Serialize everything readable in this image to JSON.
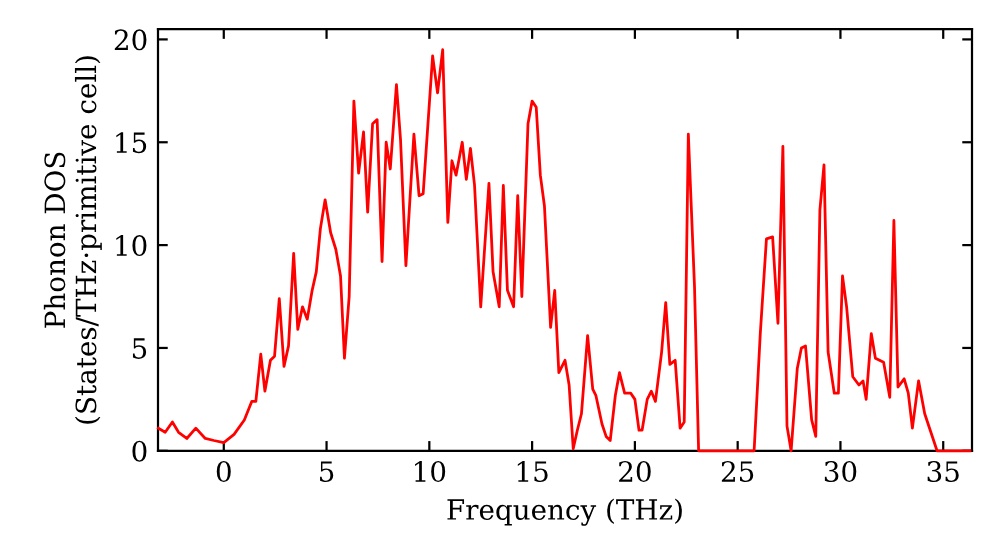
{
  "chart_data": {
    "type": "line",
    "xlabel": "Frequency (THz)",
    "ylabel": "Phonon DOS\n(States/THz·primitive cell)",
    "xlim": [
      -3.2,
      36.4
    ],
    "ylim": [
      0,
      20.5
    ],
    "xticks": [
      0,
      5,
      10,
      15,
      20,
      25,
      30,
      35
    ],
    "yticks": [
      0,
      5,
      10,
      15,
      20
    ],
    "grid": false,
    "series": [
      {
        "color": "#ff0000",
        "x": [
          -3.18,
          -2.85,
          -2.5,
          -2.2,
          -1.8,
          -1.36,
          -0.9,
          -0.48,
          0.0,
          0.5,
          1.0,
          1.36,
          1.56,
          1.8,
          2.0,
          2.27,
          2.47,
          2.7,
          2.93,
          3.15,
          3.4,
          3.6,
          3.83,
          4.06,
          4.3,
          4.5,
          4.7,
          4.93,
          5.2,
          5.45,
          5.68,
          5.87,
          6.1,
          6.33,
          6.56,
          6.8,
          7.0,
          7.24,
          7.46,
          7.7,
          7.9,
          8.1,
          8.4,
          8.6,
          8.86,
          9.25,
          9.5,
          9.7,
          10.16,
          10.4,
          10.65,
          10.9,
          11.1,
          11.3,
          11.6,
          11.8,
          12.0,
          12.2,
          12.5,
          12.9,
          13.1,
          13.4,
          13.6,
          13.8,
          14.1,
          14.3,
          14.5,
          14.8,
          15.0,
          15.2,
          15.4,
          15.6,
          15.9,
          16.1,
          16.3,
          16.6,
          16.8,
          17.0,
          17.2,
          17.4,
          17.7,
          17.95,
          18.1,
          18.4,
          18.6,
          18.8,
          19.05,
          19.25,
          19.5,
          19.8,
          20.0,
          20.2,
          20.35,
          20.6,
          20.8,
          21.0,
          21.3,
          21.5,
          21.7,
          21.96,
          22.2,
          22.4,
          22.6,
          22.9,
          23.1,
          25.8,
          26.1,
          26.4,
          26.7,
          26.96,
          27.2,
          27.4,
          27.6,
          27.9,
          28.1,
          28.3,
          28.6,
          28.8,
          29.0,
          29.2,
          29.4,
          29.7,
          29.9,
          30.1,
          30.3,
          30.6,
          30.9,
          31.1,
          31.25,
          31.5,
          31.7,
          32.1,
          32.4,
          32.6,
          32.8,
          33.1,
          33.3,
          33.5,
          33.8,
          34.1,
          34.4,
          34.7,
          36.3
        ],
        "values": [
          1.1,
          0.9,
          1.4,
          0.9,
          0.6,
          1.1,
          0.6,
          0.5,
          0.4,
          0.8,
          1.5,
          2.4,
          2.4,
          4.7,
          2.9,
          4.4,
          4.6,
          7.4,
          4.1,
          5.1,
          9.6,
          5.9,
          7.0,
          6.4,
          7.8,
          8.7,
          10.8,
          12.2,
          10.6,
          9.8,
          8.5,
          4.5,
          7.5,
          17.0,
          13.5,
          15.5,
          11.6,
          15.9,
          16.1,
          9.2,
          15.0,
          13.7,
          17.8,
          15.1,
          9.0,
          15.4,
          12.4,
          12.5,
          19.2,
          17.4,
          19.5,
          11.1,
          14.1,
          13.4,
          15.0,
          13.2,
          14.7,
          12.9,
          7.0,
          13.0,
          8.7,
          7.0,
          12.9,
          7.8,
          7.0,
          12.4,
          7.5,
          15.9,
          17.0,
          16.7,
          13.4,
          11.9,
          6.0,
          7.8,
          3.8,
          4.4,
          3.2,
          0.1,
          1.0,
          1.8,
          5.6,
          3.0,
          2.7,
          1.3,
          0.7,
          0.5,
          2.7,
          3.8,
          2.8,
          2.8,
          2.5,
          1.0,
          1.0,
          2.5,
          2.9,
          2.4,
          4.8,
          7.2,
          4.2,
          4.4,
          1.1,
          1.4,
          15.4,
          8.0,
          0,
          0,
          5.7,
          10.3,
          10.4,
          6.2,
          14.8,
          1.2,
          0,
          4.0,
          5.0,
          5.1,
          1.5,
          0.7,
          11.7,
          13.9,
          4.8,
          2.8,
          2.8,
          8.5,
          7.0,
          3.6,
          3.2,
          3.4,
          2.5,
          5.7,
          4.5,
          4.3,
          2.6,
          11.2,
          3.1,
          3.5,
          2.8,
          1.1,
          3.4,
          1.8,
          0.9,
          0,
          0
        ]
      }
    ]
  }
}
